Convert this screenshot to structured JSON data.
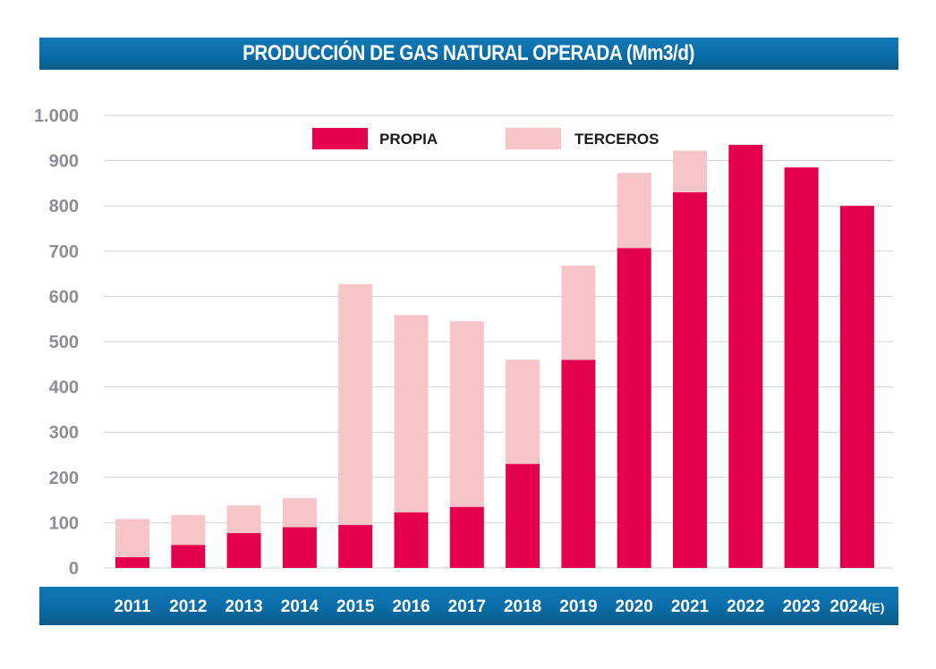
{
  "chart_data": {
    "type": "bar",
    "stacked": true,
    "title": "PRODUCCIÓN DE GAS NATURAL OPERADA (Mm3/d)",
    "categories": [
      "2011",
      "2012",
      "2013",
      "2014",
      "2015",
      "2016",
      "2017",
      "2018",
      "2019",
      "2020",
      "2021",
      "2022",
      "2023",
      "2024(E)"
    ],
    "series": [
      {
        "name": "PROPIA",
        "color": "#e5004d",
        "values": [
          24,
          51,
          77,
          90,
          95,
          123,
          135,
          230,
          460,
          707,
          830,
          935,
          885,
          800
        ]
      },
      {
        "name": "TERCEROS",
        "color": "#f7c4c8",
        "values": [
          84,
          66,
          61,
          64,
          532,
          436,
          410,
          230,
          208,
          166,
          92,
          0,
          0,
          0
        ]
      }
    ],
    "ylim": [
      0,
      1000
    ],
    "yticks": [
      0,
      100,
      200,
      300,
      400,
      500,
      600,
      700,
      800,
      900,
      1000
    ],
    "ytick_labels": [
      "0",
      "100",
      "200",
      "300",
      "400",
      "500",
      "600",
      "700",
      "800",
      "900",
      "1.000"
    ],
    "xlabel": "",
    "ylabel": "",
    "grid": true,
    "legend_position": "top"
  },
  "theme": {
    "band_color": "#0a6ea9",
    "grid_color": "#cfd3d8",
    "tick_color": "#8a8f96"
  }
}
